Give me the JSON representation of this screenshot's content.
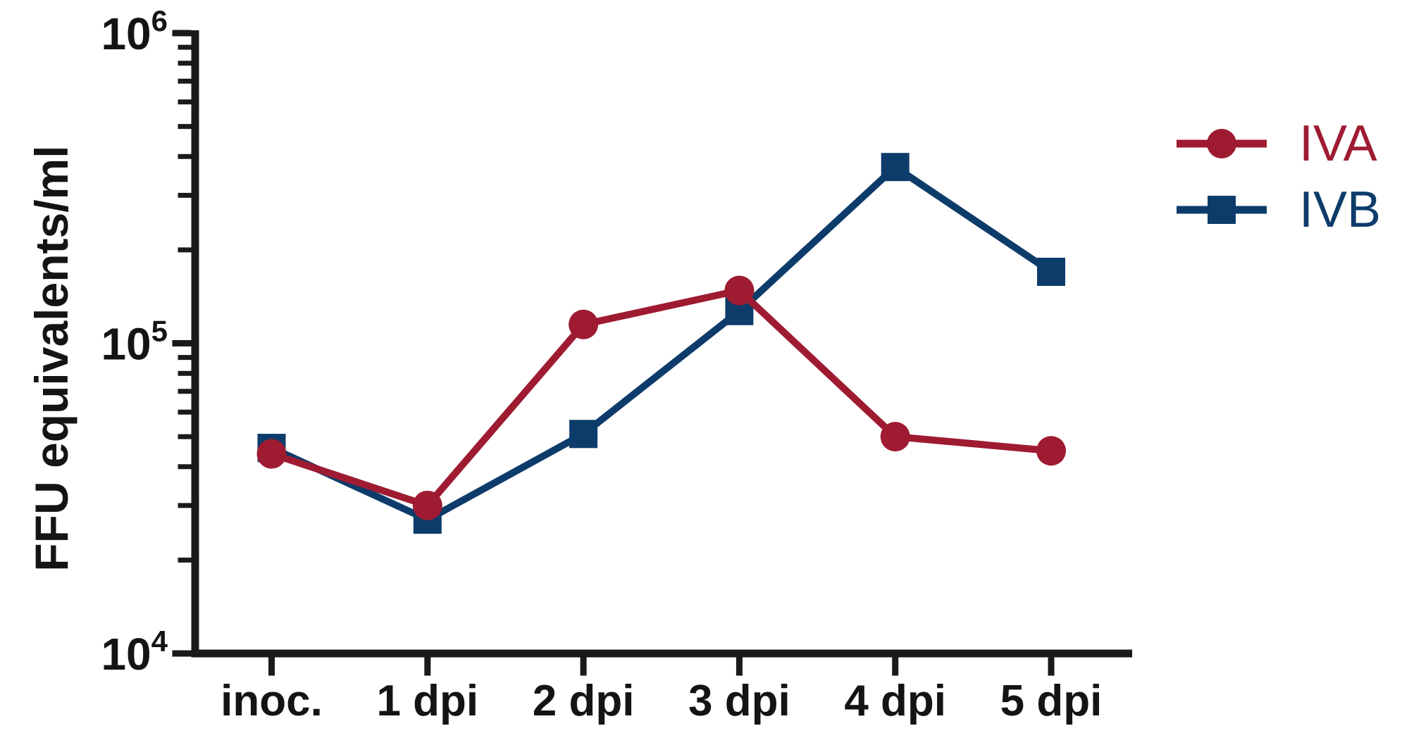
{
  "figure": {
    "background": "#ffffff",
    "axis_color": "#1a1a1a",
    "text_color": "#141414"
  },
  "chart_data": {
    "type": "line",
    "title": "",
    "xlabel": "",
    "ylabel": "FFU equivalents/ml",
    "x_categories": [
      "inoc.",
      "1 dpi",
      "2 dpi",
      "3 dpi",
      "4 dpi",
      "5 dpi"
    ],
    "y_scale": "log10",
    "ylim": [
      10000,
      1000000
    ],
    "grid": false,
    "legend_position": "right",
    "y_ticks": [
      {
        "base": "10",
        "exp": "4",
        "value": 10000
      },
      {
        "base": "10",
        "exp": "5",
        "value": 100000
      },
      {
        "base": "10",
        "exp": "6",
        "value": 1000000
      }
    ],
    "series": [
      {
        "name": "IVA",
        "marker": "circle",
        "color": "#9e1b32",
        "values": [
          44000,
          30000,
          115000,
          148000,
          50000,
          45000
        ]
      },
      {
        "name": "IVB",
        "marker": "square",
        "color": "#0d3c6b",
        "values": [
          46000,
          27000,
          51000,
          127000,
          370000,
          170000
        ]
      }
    ]
  }
}
